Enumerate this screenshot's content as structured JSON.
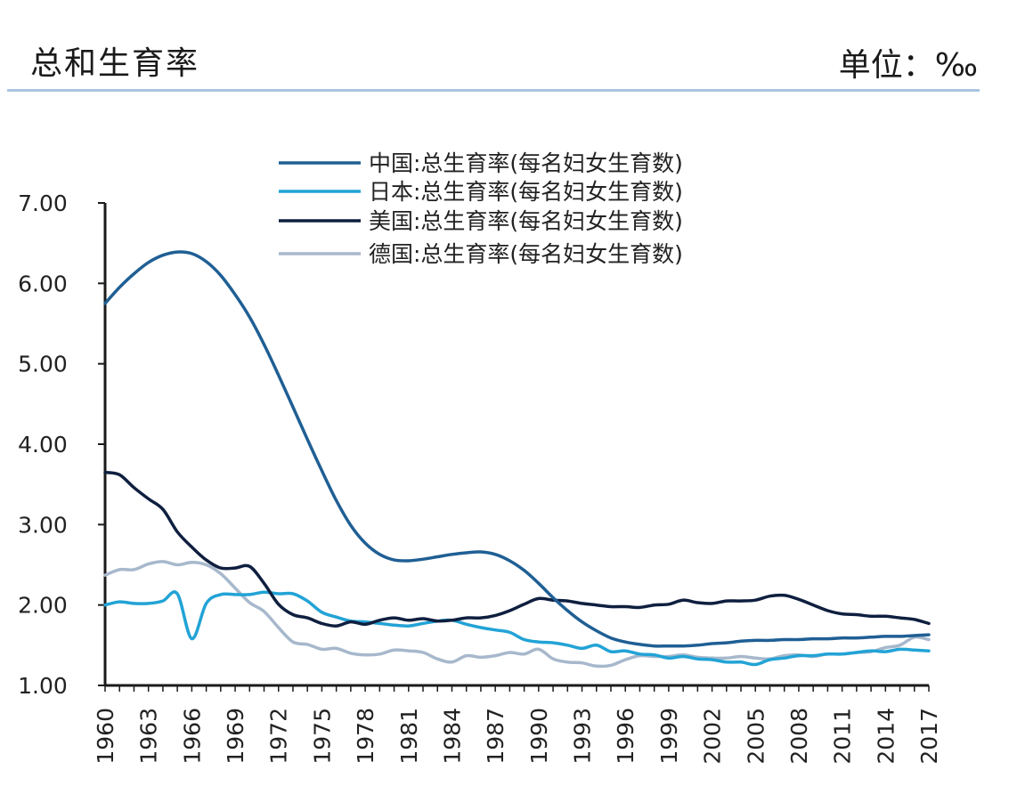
{
  "header": {
    "title": "总和生育率",
    "unit": "单位：‰"
  },
  "chart_data": {
    "type": "line",
    "x": [
      1960,
      1961,
      1962,
      1963,
      1964,
      1965,
      1966,
      1967,
      1968,
      1969,
      1970,
      1971,
      1972,
      1973,
      1974,
      1975,
      1976,
      1977,
      1978,
      1979,
      1980,
      1981,
      1982,
      1983,
      1984,
      1985,
      1986,
      1987,
      1988,
      1989,
      1990,
      1991,
      1992,
      1993,
      1994,
      1995,
      1996,
      1997,
      1998,
      1999,
      2000,
      2001,
      2002,
      2003,
      2004,
      2005,
      2006,
      2007,
      2008,
      2009,
      2010,
      2011,
      2012,
      2013,
      2014,
      2015,
      2016,
      2017
    ],
    "x_tick_labels": [
      "1960",
      "1963",
      "1966",
      "1969",
      "1972",
      "1975",
      "1978",
      "1981",
      "1984",
      "1987",
      "1990",
      "1993",
      "1996",
      "1999",
      "2002",
      "2005",
      "2008",
      "2011",
      "2014",
      "2017"
    ],
    "ylim": [
      1.0,
      7.0
    ],
    "y_tick_labels": [
      "7.00",
      "6.00",
      "5.00",
      "4.00",
      "3.00",
      "2.00",
      "1.00"
    ],
    "legend_position": "top-center",
    "series": [
      {
        "name": "中国:总生育率(每名妇女生育数)",
        "color": "#1f5f94",
        "values": [
          5.75,
          5.95,
          6.12,
          6.26,
          6.35,
          6.39,
          6.37,
          6.27,
          6.1,
          5.86,
          5.58,
          5.24,
          4.86,
          4.46,
          4.06,
          3.67,
          3.3,
          2.99,
          2.77,
          2.63,
          2.56,
          2.55,
          2.57,
          2.6,
          2.63,
          2.65,
          2.66,
          2.63,
          2.55,
          2.43,
          2.27,
          2.09,
          1.93,
          1.79,
          1.68,
          1.59,
          1.54,
          1.51,
          1.49,
          1.49,
          1.49,
          1.5,
          1.52,
          1.53,
          1.55,
          1.56,
          1.56,
          1.57,
          1.57,
          1.58,
          1.58,
          1.59,
          1.59,
          1.6,
          1.61,
          1.61,
          1.62,
          1.63
        ]
      },
      {
        "name": "日本:总生育率(每名妇女生育数)",
        "color": "#22a3d6",
        "values": [
          2.0,
          2.04,
          2.02,
          2.02,
          2.05,
          2.14,
          1.58,
          2.02,
          2.13,
          2.13,
          2.13,
          2.16,
          2.14,
          2.14,
          2.05,
          1.91,
          1.85,
          1.8,
          1.79,
          1.77,
          1.75,
          1.74,
          1.77,
          1.8,
          1.81,
          1.76,
          1.72,
          1.69,
          1.66,
          1.57,
          1.54,
          1.53,
          1.5,
          1.46,
          1.5,
          1.42,
          1.43,
          1.39,
          1.38,
          1.34,
          1.36,
          1.33,
          1.32,
          1.29,
          1.29,
          1.26,
          1.32,
          1.34,
          1.37,
          1.37,
          1.39,
          1.39,
          1.41,
          1.43,
          1.42,
          1.45,
          1.44,
          1.43
        ]
      },
      {
        "name": "美国:总生育率(每名妇女生育数)",
        "color": "#0f1f3f",
        "values": [
          3.65,
          3.62,
          3.46,
          3.32,
          3.19,
          2.91,
          2.72,
          2.56,
          2.46,
          2.46,
          2.48,
          2.27,
          2.01,
          1.88,
          1.84,
          1.77,
          1.74,
          1.79,
          1.76,
          1.81,
          1.84,
          1.81,
          1.83,
          1.8,
          1.81,
          1.84,
          1.84,
          1.87,
          1.93,
          2.01,
          2.08,
          2.06,
          2.05,
          2.02,
          2.0,
          1.98,
          1.98,
          1.97,
          2.0,
          2.01,
          2.06,
          2.03,
          2.02,
          2.05,
          2.05,
          2.06,
          2.11,
          2.12,
          2.07,
          2.0,
          1.93,
          1.89,
          1.88,
          1.86,
          1.86,
          1.84,
          1.82,
          1.77
        ]
      },
      {
        "name": "德国:总生育率(每名妇女生育数)",
        "color": "#a7b8cc",
        "values": [
          2.37,
          2.44,
          2.44,
          2.51,
          2.54,
          2.5,
          2.53,
          2.5,
          2.39,
          2.21,
          2.03,
          1.92,
          1.72,
          1.54,
          1.51,
          1.45,
          1.46,
          1.4,
          1.38,
          1.39,
          1.44,
          1.43,
          1.41,
          1.33,
          1.29,
          1.37,
          1.35,
          1.37,
          1.41,
          1.39,
          1.45,
          1.33,
          1.29,
          1.28,
          1.24,
          1.25,
          1.32,
          1.37,
          1.36,
          1.36,
          1.38,
          1.35,
          1.34,
          1.34,
          1.36,
          1.34,
          1.33,
          1.37,
          1.38,
          1.36,
          1.39,
          1.39,
          1.41,
          1.42,
          1.47,
          1.5,
          1.6,
          1.57
        ]
      }
    ]
  }
}
